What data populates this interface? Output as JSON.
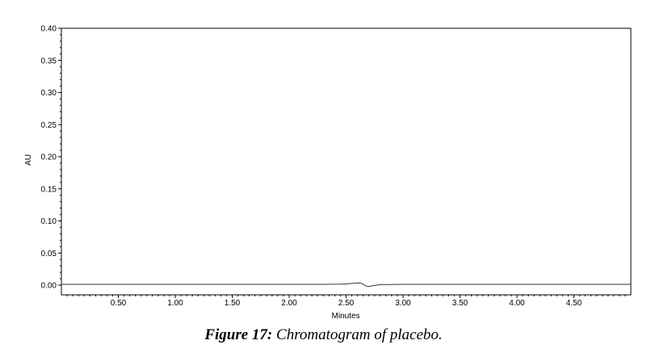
{
  "chart_data": {
    "type": "line",
    "title": "",
    "xlabel": "Minutes",
    "ylabel": "AU",
    "xlim": [
      0,
      5.0
    ],
    "ylim": [
      0,
      0.4
    ],
    "x_ticks": [
      "0.50",
      "1.00",
      "1.50",
      "2.00",
      "2.50",
      "3.00",
      "3.50",
      "4.00",
      "4.50"
    ],
    "y_ticks": [
      "0.00",
      "0.05",
      "0.10",
      "0.15",
      "0.20",
      "0.25",
      "0.30",
      "0.35",
      "0.40"
    ],
    "grid": false,
    "legend": "none",
    "line_color": "#333333",
    "series": [
      {
        "x": [
          0,
          0.5,
          1.0,
          1.5,
          2.0,
          2.3,
          2.45,
          2.52,
          2.57,
          2.61,
          2.64,
          2.67,
          2.7,
          2.74,
          2.8,
          3.0,
          3.5,
          4.0,
          4.5,
          5.0
        ],
        "values": [
          0.0012,
          0.0012,
          0.0012,
          0.0012,
          0.0012,
          0.0012,
          0.0015,
          0.0022,
          0.003,
          0.0034,
          0.0026,
          -0.0012,
          -0.002,
          -0.0006,
          0.0008,
          0.0012,
          0.0012,
          0.0012,
          0.0012,
          0.0012
        ]
      }
    ]
  },
  "caption": {
    "lead": "Figure 17:",
    "rest": " Chromatogram of placebo."
  }
}
